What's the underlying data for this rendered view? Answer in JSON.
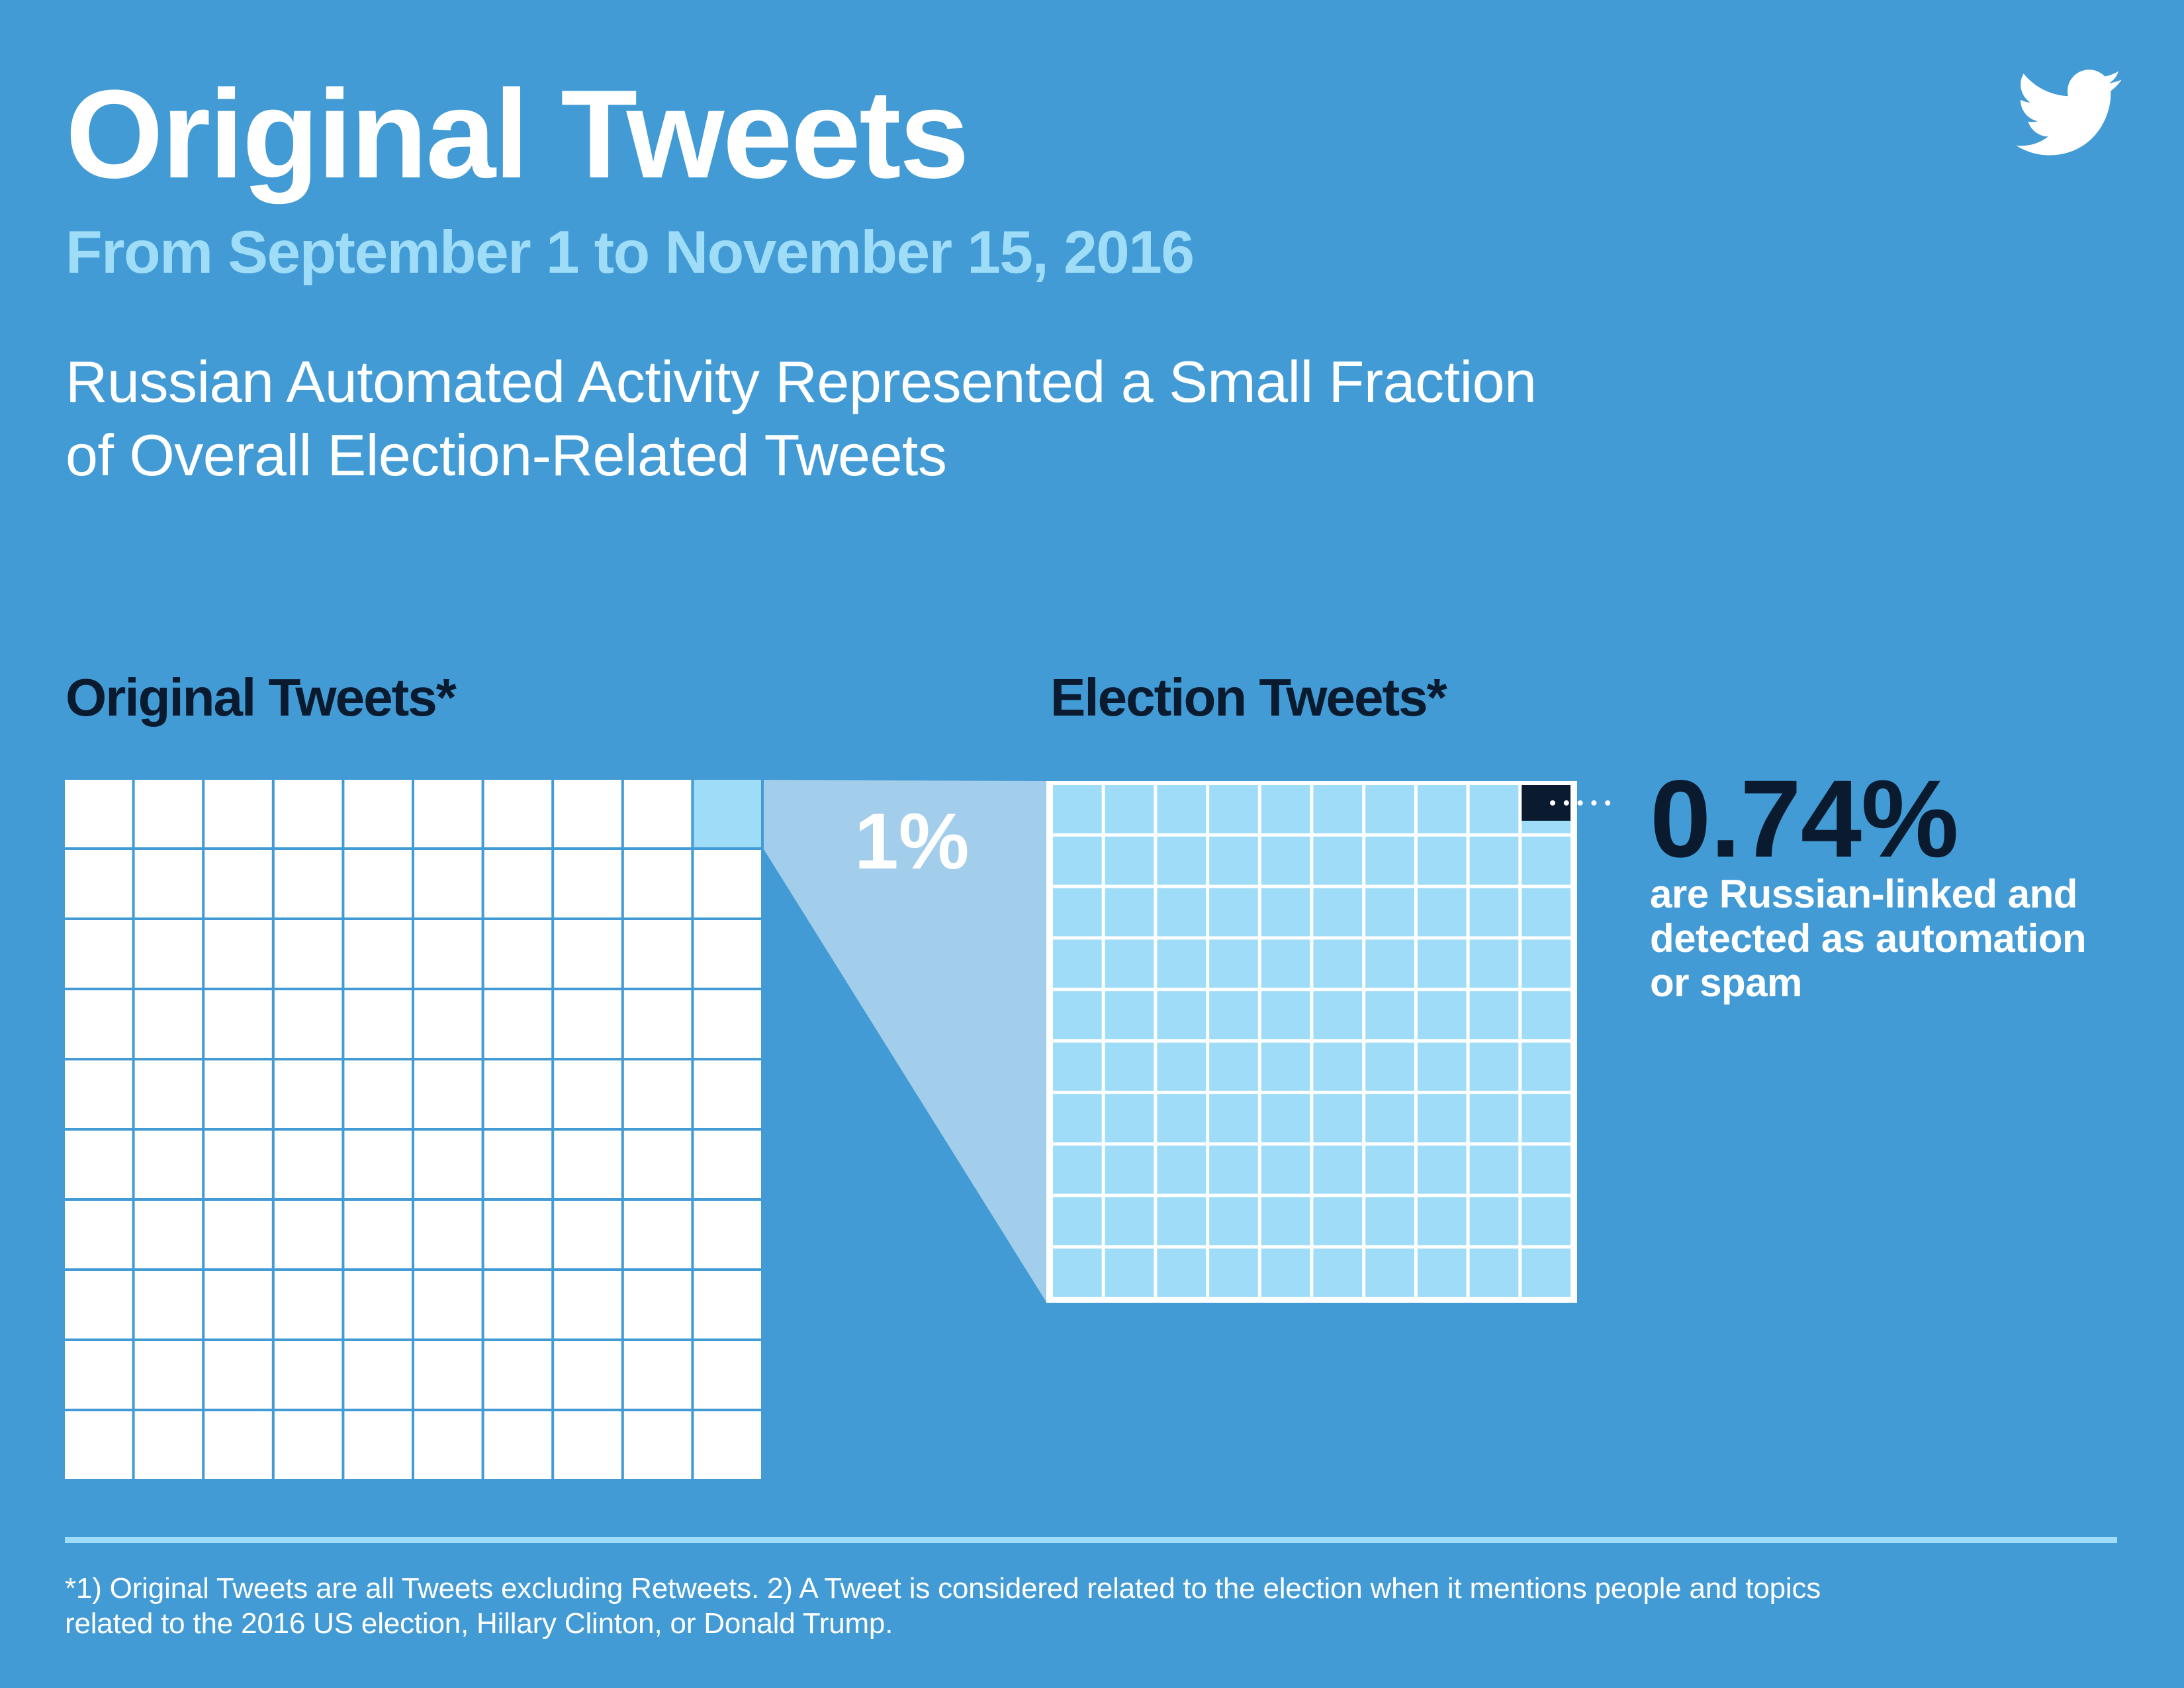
{
  "header": {
    "title": "Original Tweets",
    "subtitle": "From September 1 to November 15, 2016",
    "description_lines": [
      "Russian Automated Activity Represented a Small Fraction",
      "of Overall Election-Related Tweets"
    ],
    "logo_icon": "twitter-bird-icon"
  },
  "sections": {
    "left_header": "Original Tweets*",
    "right_header": "Election Tweets*"
  },
  "callouts": {
    "election_share": "1%",
    "russian_share": "0.74%",
    "russian_description_lines": [
      "are Russian-linked and",
      "detected as automation",
      "or spam"
    ]
  },
  "footnote": {
    "lines": [
      "*1) Original Tweets are all Tweets excluding Retweets. 2) A Tweet is considered related to the election when it mentions people and topics",
      "related to the 2016 US election, Hillary Clinton, or Donald Trump."
    ]
  },
  "colors": {
    "background": "#429bd5",
    "grid_cell_default": "#ffffff",
    "grid_cell_highlight": "#9edcf7",
    "funnel": "#a2cdeb",
    "election_grid_border": "#ffffff",
    "election_grid_cell": "#9edcf7",
    "russian_cell": "#0a1a2f",
    "subtitle": "#9edcf7",
    "dark_text": "#0a1a2f",
    "rule": "#9edcf7",
    "dots": "#ffffff"
  },
  "chart_data": [
    {
      "type": "heatmap",
      "name": "Original Tweets waffle",
      "title": "Original Tweets*",
      "rows": 10,
      "columns": 10,
      "total_units": 100,
      "highlighted_units": 1,
      "highlighted_percent": 1,
      "highlight_label": "1%",
      "highlight_position": "top-right"
    },
    {
      "type": "heatmap",
      "name": "Election Tweets waffle",
      "title": "Election Tweets*",
      "rows": 10,
      "columns": 10,
      "total_units": 100,
      "highlighted_units": 0.74,
      "highlighted_percent": 0.74,
      "highlight_label": "0.74%",
      "highlight_position": "top-right"
    }
  ]
}
